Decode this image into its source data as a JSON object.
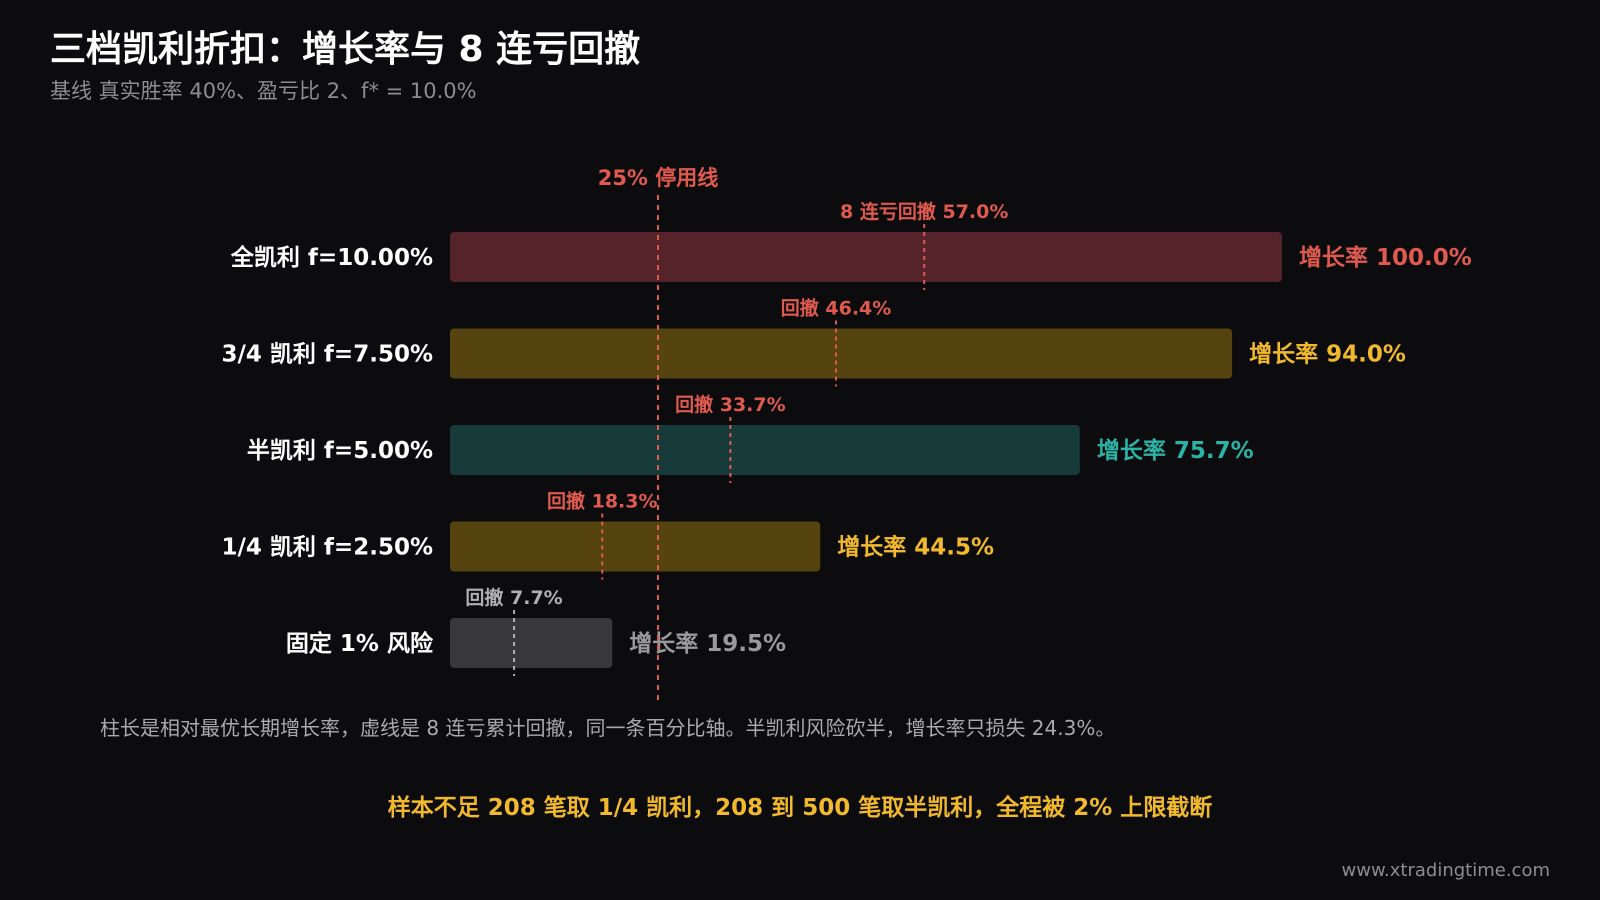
{
  "header": {
    "title": "三档凯利折扣：增长率与 8 连亏回撤",
    "subtitle": "基线 真实胜率 40%、盈亏比 2、f* = 10.0%"
  },
  "chart_data": {
    "type": "bar",
    "orientation": "horizontal",
    "axis_range": [
      0,
      100
    ],
    "reference_line": {
      "value": 25,
      "label": "25% 停用线",
      "color": "#e05a4e"
    },
    "series": [
      {
        "category": "全凯利 f=10.00%",
        "growth": 100.0,
        "growth_label": "增长率 100.0%",
        "drawdown": 57.0,
        "drawdown_label": "8 连亏回撤 57.0%",
        "fill": "#55232a",
        "label_color": "#e05a4e",
        "dd_color": "#e05a4e"
      },
      {
        "category": "3/4 凯利 f=7.50%",
        "growth": 94.0,
        "growth_label": "增长率 94.0%",
        "drawdown": 46.4,
        "drawdown_label": "回撤 46.4%",
        "fill": "#55440f",
        "label_color": "#f2b92c",
        "dd_color": "#e05a4e"
      },
      {
        "category": "半凯利 f=5.00%",
        "growth": 75.7,
        "growth_label": "增长率 75.7%",
        "drawdown": 33.7,
        "drawdown_label": "回撤 33.7%",
        "fill": "#173a3a",
        "label_color": "#2bb3a6",
        "dd_color": "#e05a4e"
      },
      {
        "category": "1/4 凯利 f=2.50%",
        "growth": 44.5,
        "growth_label": "增长率 44.5%",
        "drawdown": 18.3,
        "drawdown_label": "回撤 18.3%",
        "fill": "#55440f",
        "label_color": "#f2b92c",
        "dd_color": "#e05a4e"
      },
      {
        "category": "固定 1% 风险",
        "growth": 19.5,
        "growth_label": "增长率 19.5%",
        "drawdown": 7.7,
        "drawdown_label": "回撤 7.7%",
        "fill": "#38383c",
        "label_color": "#9a9a9e",
        "dd_color": "#b0b0b4"
      }
    ]
  },
  "footer": {
    "note": "柱长是相对最优长期增长率，虚线是 8 连亏累计回撤，同一条百分比轴。半凯利风险砍半，增长率只损失 24.3%。",
    "rule": "样本不足 208 笔取 1/4 凯利，208 到 500 笔取半凯利，全程被 2% 上限截断",
    "site": "www.xtradingtime.com"
  }
}
